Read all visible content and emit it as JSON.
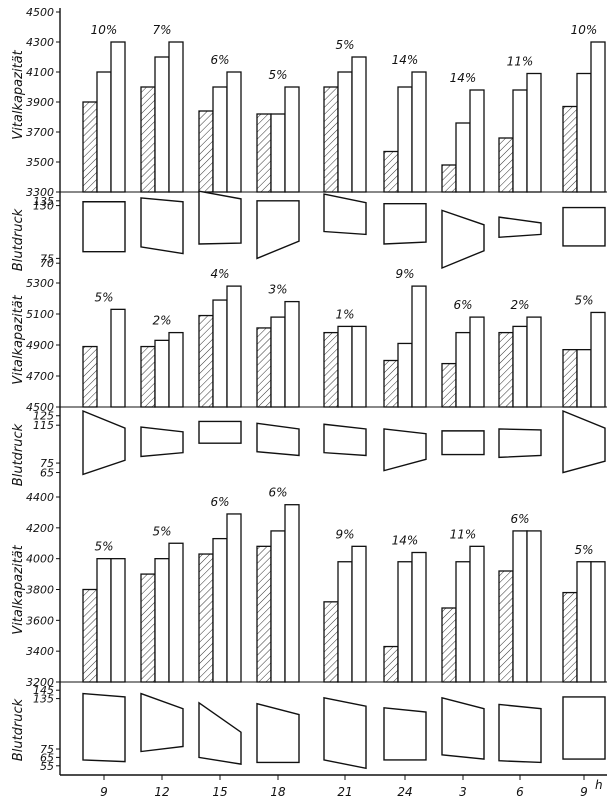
{
  "chart_data": [
    {
      "type": "bar",
      "ylabel": "Vitalkapazität",
      "y_ticks": [
        "4500",
        "4300",
        "4100",
        "3900",
        "3700",
        "3500",
        "3300"
      ],
      "ylim": [
        3300,
        4500
      ],
      "bars": [
        {
          "pct": "10%",
          "values": [
            3900,
            4100,
            4300
          ]
        },
        {
          "pct": "7%",
          "values": [
            4000,
            4200,
            4300
          ]
        },
        {
          "pct": "6%",
          "values": [
            3840,
            4000,
            4100
          ]
        },
        {
          "pct": "5%",
          "values": [
            3820,
            3820,
            4000
          ]
        },
        {
          "pct": "5%",
          "values": [
            4000,
            4100,
            4200
          ]
        },
        {
          "pct": "14%",
          "values": [
            3570,
            4000,
            4100
          ]
        },
        {
          "pct": "14%",
          "values": [
            3480,
            3760,
            3980
          ]
        },
        {
          "pct": "11%",
          "values": [
            3660,
            3980,
            4090
          ]
        },
        {
          "pct": "10%",
          "values": [
            3870,
            4090,
            4300
          ]
        }
      ],
      "bp_label": "Blutdruck",
      "bp_ticks": [
        "135",
        "130",
        "75",
        "70"
      ],
      "bp_ylim": [
        65,
        140
      ],
      "bp": [
        {
          "sys": [
            134,
            134
          ],
          "dia": [
            82,
            82
          ]
        },
        {
          "sys": [
            138,
            134
          ],
          "dia": [
            87,
            80
          ]
        },
        {
          "sys": [
            145,
            137
          ],
          "dia": [
            90,
            91
          ]
        },
        {
          "sys": [
            135,
            135
          ],
          "dia": [
            75,
            93
          ]
        },
        {
          "sys": [
            142,
            133
          ],
          "dia": [
            103,
            100
          ]
        },
        {
          "sys": [
            132,
            132
          ],
          "dia": [
            90,
            92
          ]
        },
        {
          "sys": [
            125,
            110
          ],
          "dia": [
            65,
            83
          ]
        },
        {
          "sys": [
            118,
            112
          ],
          "dia": [
            97,
            100
          ]
        },
        {
          "sys": [
            128,
            128
          ],
          "dia": [
            88,
            88
          ]
        }
      ]
    },
    {
      "type": "bar",
      "ylabel": "Vitalkapazität",
      "y_ticks": [
        "5300",
        "5100",
        "4900",
        "4700",
        "4500"
      ],
      "ylim": [
        4500,
        5300
      ],
      "bars": [
        {
          "pct": "5%",
          "values": [
            4890,
            null,
            5130
          ]
        },
        {
          "pct": "2%",
          "values": [
            4890,
            4930,
            4980
          ]
        },
        {
          "pct": "4%",
          "values": [
            5090,
            5190,
            5280
          ]
        },
        {
          "pct": "3%",
          "values": [
            5010,
            5080,
            5180
          ]
        },
        {
          "pct": "1%",
          "values": [
            4980,
            5020,
            5020
          ]
        },
        {
          "pct": "9%",
          "values": [
            4800,
            4910,
            5280
          ]
        },
        {
          "pct": "6%",
          "values": [
            4780,
            4980,
            5080
          ]
        },
        {
          "pct": "2%",
          "values": [
            4980,
            5020,
            5080
          ]
        },
        {
          "pct": "5%",
          "values": [
            4870,
            4870,
            5110
          ]
        }
      ],
      "bp_label": "Blutdruck",
      "bp_ticks": [
        "125",
        "115",
        "65",
        "75"
      ],
      "bp_ylim": [
        55,
        130
      ],
      "bp": [
        {
          "sys": [
            130,
            112
          ],
          "dia": [
            63,
            78
          ]
        },
        {
          "sys": [
            113,
            108
          ],
          "dia": [
            82,
            86
          ]
        },
        {
          "sys": [
            119,
            119
          ],
          "dia": [
            96,
            96
          ]
        },
        {
          "sys": [
            117,
            111
          ],
          "dia": [
            87,
            83
          ]
        },
        {
          "sys": [
            116,
            111
          ],
          "dia": [
            86,
            83
          ]
        },
        {
          "sys": [
            111,
            106
          ],
          "dia": [
            67,
            79
          ]
        },
        {
          "sys": [
            109,
            109
          ],
          "dia": [
            84,
            84
          ]
        },
        {
          "sys": [
            111,
            110
          ],
          "dia": [
            81,
            83
          ]
        },
        {
          "sys": [
            130,
            112
          ],
          "dia": [
            65,
            77
          ]
        }
      ]
    },
    {
      "type": "bar",
      "ylabel": "Vitalkapazität",
      "y_ticks": [
        "4400",
        "4200",
        "4000",
        "3800",
        "3600",
        "3400",
        "3200"
      ],
      "ylim": [
        3200,
        4400
      ],
      "bars": [
        {
          "pct": "5%",
          "values": [
            3800,
            4000,
            4000
          ]
        },
        {
          "pct": "5%",
          "values": [
            3900,
            4000,
            4100
          ]
        },
        {
          "pct": "6%",
          "values": [
            4030,
            4130,
            4290
          ]
        },
        {
          "pct": "6%",
          "values": [
            4080,
            4180,
            4350
          ]
        },
        {
          "pct": "9%",
          "values": [
            3720,
            3980,
            4080
          ]
        },
        {
          "pct": "14%",
          "values": [
            3430,
            3980,
            4040
          ]
        },
        {
          "pct": "11%",
          "values": [
            3680,
            3980,
            4080
          ]
        },
        {
          "pct": "6%",
          "values": [
            3920,
            4180,
            4180
          ]
        },
        {
          "pct": "5%",
          "values": [
            3780,
            3980,
            3980
          ]
        }
      ],
      "bp_label": "Blutdruck",
      "bp_ticks": [
        "145",
        "135",
        "75",
        "65",
        "55"
      ],
      "bp_ylim": [
        50,
        150
      ],
      "bp": [
        {
          "sys": [
            141,
            137
          ],
          "dia": [
            62,
            60
          ]
        },
        {
          "sys": [
            141,
            123
          ],
          "dia": [
            72,
            78
          ]
        },
        {
          "sys": [
            130,
            95
          ],
          "dia": [
            65,
            57
          ]
        },
        {
          "sys": [
            129,
            116
          ],
          "dia": [
            59,
            59
          ]
        },
        {
          "sys": [
            136,
            126
          ],
          "dia": [
            62,
            52
          ]
        },
        {
          "sys": [
            124,
            119
          ],
          "dia": [
            62,
            62
          ]
        },
        {
          "sys": [
            136,
            123
          ],
          "dia": [
            68,
            63
          ]
        },
        {
          "sys": [
            128,
            123
          ],
          "dia": [
            61,
            59
          ]
        },
        {
          "sys": [
            137,
            137
          ],
          "dia": [
            63,
            63
          ]
        }
      ]
    }
  ],
  "x_ticks": [
    "9",
    "12",
    "15",
    "18",
    "21",
    "24",
    "3",
    "6",
    "9"
  ],
  "x_unit": "h"
}
